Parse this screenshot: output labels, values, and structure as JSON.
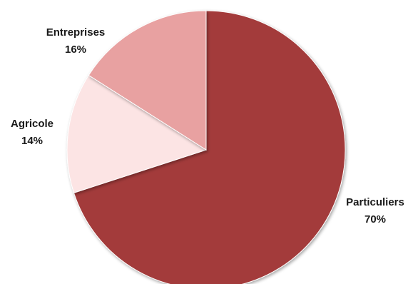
{
  "chart_data": {
    "type": "pie",
    "title": "",
    "start": "12 o'clock",
    "direction": "clockwise",
    "slices": [
      {
        "label": "Particuliers",
        "value": 70,
        "value_label": "70%",
        "color": "#a33a3a"
      },
      {
        "label": "Agricole",
        "value": 14,
        "value_label": "14%",
        "color": "#fce4e4"
      },
      {
        "label": "Entreprises",
        "value": 16,
        "value_label": "16%",
        "color": "#e8a1a1"
      }
    ]
  }
}
